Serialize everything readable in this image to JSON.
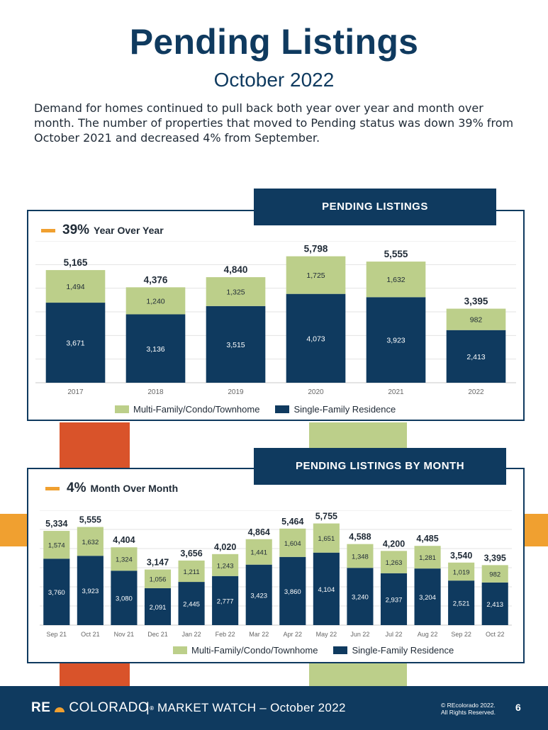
{
  "page": {
    "title": "Pending Listings",
    "subtitle": "October 2022",
    "intro": "Demand for homes continued to pull back both year over year and month over month. The number of properties that moved to Pending status was down 39% from October 2021 and decreased 4% from September."
  },
  "colors": {
    "navy": "#0f3a5f",
    "green": "#bccf8a",
    "orange": "#f0a030",
    "rust": "#d9532a"
  },
  "panels": {
    "annual": {
      "header": "PENDING LISTINGS",
      "kpi_pct": "39%",
      "kpi_label": "Year Over Year"
    },
    "monthly": {
      "header": "PENDING LISTINGS BY MONTH",
      "kpi_pct": "4%",
      "kpi_label": "Month Over Month"
    }
  },
  "legend": {
    "multi": "Multi-Family/Condo/Townhome",
    "single": "Single-Family Residence"
  },
  "chart_data": [
    {
      "type": "bar",
      "stacked": true,
      "categories": [
        "2017",
        "2018",
        "2019",
        "2020",
        "2021",
        "2022"
      ],
      "series": [
        {
          "name": "Single-Family Residence",
          "values": [
            3671,
            3136,
            3515,
            4073,
            3923,
            2413
          ]
        },
        {
          "name": "Multi-Family/Condo/Townhome",
          "values": [
            1494,
            1240,
            1325,
            1725,
            1632,
            982
          ]
        }
      ],
      "value_labels": {
        "single": [
          "3,671",
          "3,136",
          "3,515",
          "4,073",
          "3,923",
          "2,413"
        ],
        "multi": [
          "1,494",
          "1,240",
          "1,325",
          "1,725",
          "1,632",
          "982"
        ]
      },
      "totals": [
        "5,165",
        "4,376",
        "4,840",
        "5,798",
        "5,555",
        "3,395"
      ],
      "ylim": [
        0,
        6500
      ],
      "legend_position": "bottom-center"
    },
    {
      "type": "bar",
      "stacked": true,
      "categories": [
        "Sep 21",
        "Oct 21",
        "Nov 21",
        "Dec 21",
        "Jan 22",
        "Feb 22",
        "Mar 22",
        "Apr 22",
        "May 22",
        "Jun 22",
        "Jul 22",
        "Aug 22",
        "Sep 22",
        "Oct 22"
      ],
      "series": [
        {
          "name": "Single-Family Residence",
          "values": [
            3760,
            3923,
            3080,
            2091,
            2445,
            2777,
            3423,
            3860,
            4104,
            3240,
            2937,
            3204,
            2521,
            2413
          ]
        },
        {
          "name": "Multi-Family/Condo/Townhome",
          "values": [
            1574,
            1632,
            1324,
            1056,
            1211,
            1243,
            1441,
            1604,
            1651,
            1348,
            1263,
            1281,
            1019,
            982
          ]
        }
      ],
      "value_labels": {
        "single": [
          "3,760",
          "3,923",
          "3,080",
          "2,091",
          "2,445",
          "2,777",
          "3,423",
          "3,860",
          "4,104",
          "3,240",
          "2,937",
          "3,204",
          "2,521",
          "2,413"
        ],
        "multi": [
          "1,574",
          "1,632",
          "1,324",
          "1,056",
          "1,211",
          "1,243",
          "1,441",
          "1,604",
          "1,651",
          "1,348",
          "1,263",
          "1,281",
          "1,019",
          "982"
        ]
      },
      "totals": [
        "5,334",
        "5,555",
        "4,404",
        "3,147",
        "3,656",
        "4,020",
        "4,864",
        "5,464",
        "5,755",
        "4,588",
        "4,200",
        "4,485",
        "3,540",
        "3,395"
      ],
      "ylim": [
        0,
        6500
      ],
      "legend_position": "bottom-center"
    }
  ],
  "footer": {
    "logo_left": "RE",
    "logo_right": "COLORADO",
    "logo_reg": "®",
    "separator": "|",
    "market_watch": "MARKET WATCH – October 2022",
    "copyright_line1": "© REcolorado 2022.",
    "copyright_line2": "All Rights Reserved.",
    "page_number": "6"
  }
}
